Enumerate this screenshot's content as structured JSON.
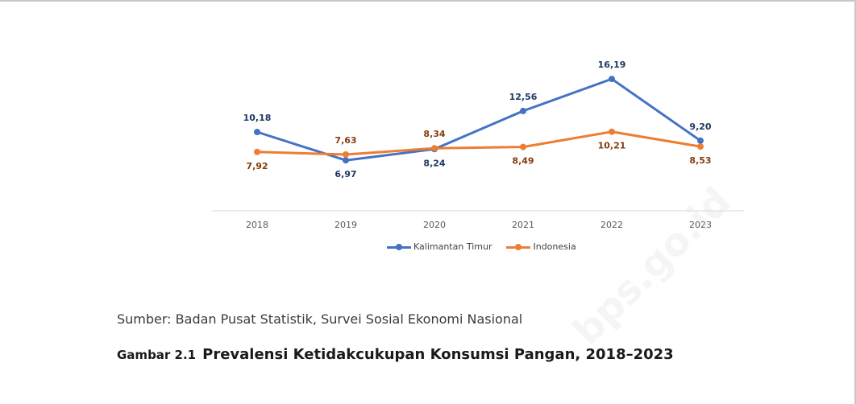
{
  "chart_data": {
    "type": "line",
    "categories": [
      "2018",
      "2019",
      "2020",
      "2021",
      "2022",
      "2023"
    ],
    "series": [
      {
        "name": "Kalimantan Timur",
        "color": "#4472c4",
        "values": [
          10.18,
          6.97,
          8.24,
          12.56,
          16.19,
          9.2
        ],
        "labels": [
          "10,18",
          "6,97",
          "8,24",
          "12,56",
          "16,19",
          "9,20"
        ]
      },
      {
        "name": "Indonesia",
        "color": "#ed7d31",
        "values": [
          7.92,
          7.63,
          8.34,
          8.49,
          10.21,
          8.53
        ],
        "labels": [
          "7,92",
          "7,63",
          "8,34",
          "8,49",
          "10,21",
          "8,53"
        ]
      }
    ],
    "grid": false,
    "legend": "bottom"
  },
  "source_text": "Sumber: Badan Pusat Statistik, Survei Sosial Ekonomi Nasional",
  "caption": {
    "number": "Gambar 2.1",
    "title": "Prevalensi Ketidakcukupan Konsumsi Pangan, 2018–2023"
  },
  "watermark": "bps.go.id"
}
